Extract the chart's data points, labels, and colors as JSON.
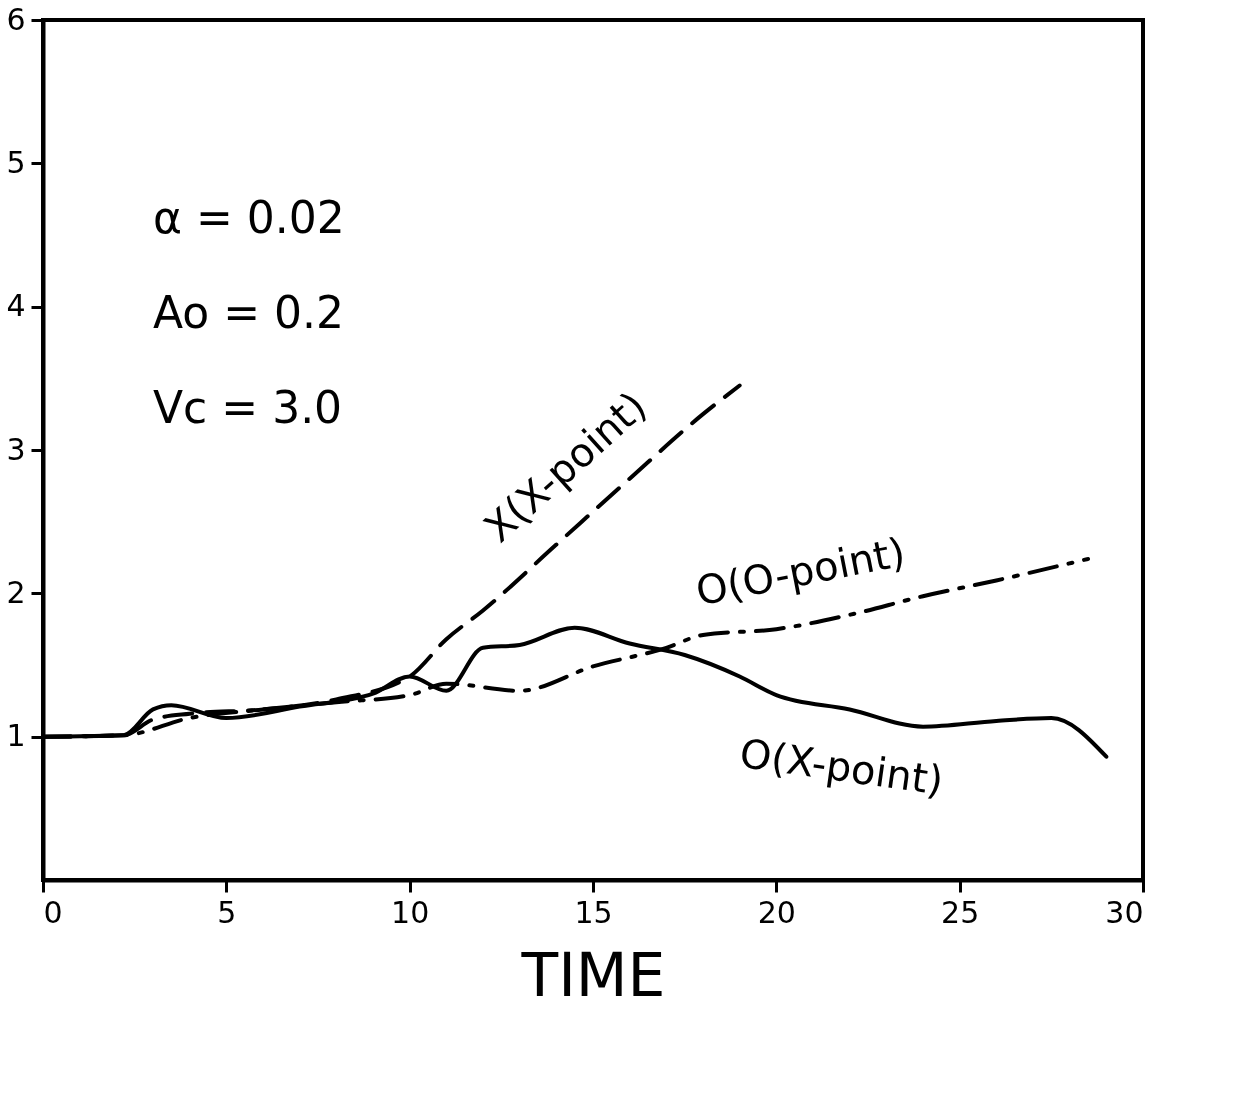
{
  "chart_data": {
    "type": "line",
    "xlabel": "TIME",
    "xlim": [
      0,
      30
    ],
    "ylim": [
      0,
      6
    ],
    "xticks": [
      0,
      5,
      10,
      15,
      20,
      25,
      30
    ],
    "yticks": [
      1,
      2,
      3,
      4,
      5,
      6
    ],
    "grid": false,
    "marker": "none",
    "annotations": [
      "α = 0.02",
      "Ao = 0.2",
      "Vc = 3.0"
    ],
    "series": [
      {
        "name": "X(X-point)",
        "color": "#000000",
        "line_style": "dashed",
        "x": [
          0,
          2.2,
          3,
          4,
          6,
          8,
          10,
          11,
          12,
          14,
          16,
          18,
          19
        ],
        "values": [
          1.0,
          1.01,
          1.12,
          1.16,
          1.19,
          1.26,
          1.42,
          1.68,
          1.88,
          2.34,
          2.8,
          3.25,
          3.45
        ]
      },
      {
        "name": "O(O-point)",
        "color": "#000000",
        "line_style": "dashdot",
        "x": [
          0,
          2.2,
          4,
          6,
          8,
          10,
          11,
          13,
          15,
          17,
          18,
          20,
          22,
          24,
          26,
          28.5
        ],
        "values": [
          1.0,
          1.01,
          1.13,
          1.19,
          1.24,
          1.29,
          1.37,
          1.32,
          1.49,
          1.62,
          1.71,
          1.75,
          1.85,
          1.98,
          2.09,
          2.24
        ]
      },
      {
        "name": "O(X-point)",
        "color": "#000000",
        "line_style": "solid",
        "x": [
          0,
          2.2,
          3,
          3.5,
          5,
          7,
          9,
          10,
          11,
          12,
          13,
          14.5,
          16,
          17.5,
          19,
          20,
          22,
          24,
          26,
          27.5,
          29
        ],
        "values": [
          1.0,
          1.01,
          1.19,
          1.22,
          1.13,
          1.21,
          1.3,
          1.42,
          1.32,
          1.62,
          1.64,
          1.76,
          1.65,
          1.57,
          1.42,
          1.29,
          1.19,
          1.07,
          1.11,
          1.13,
          0.86
        ]
      }
    ]
  }
}
